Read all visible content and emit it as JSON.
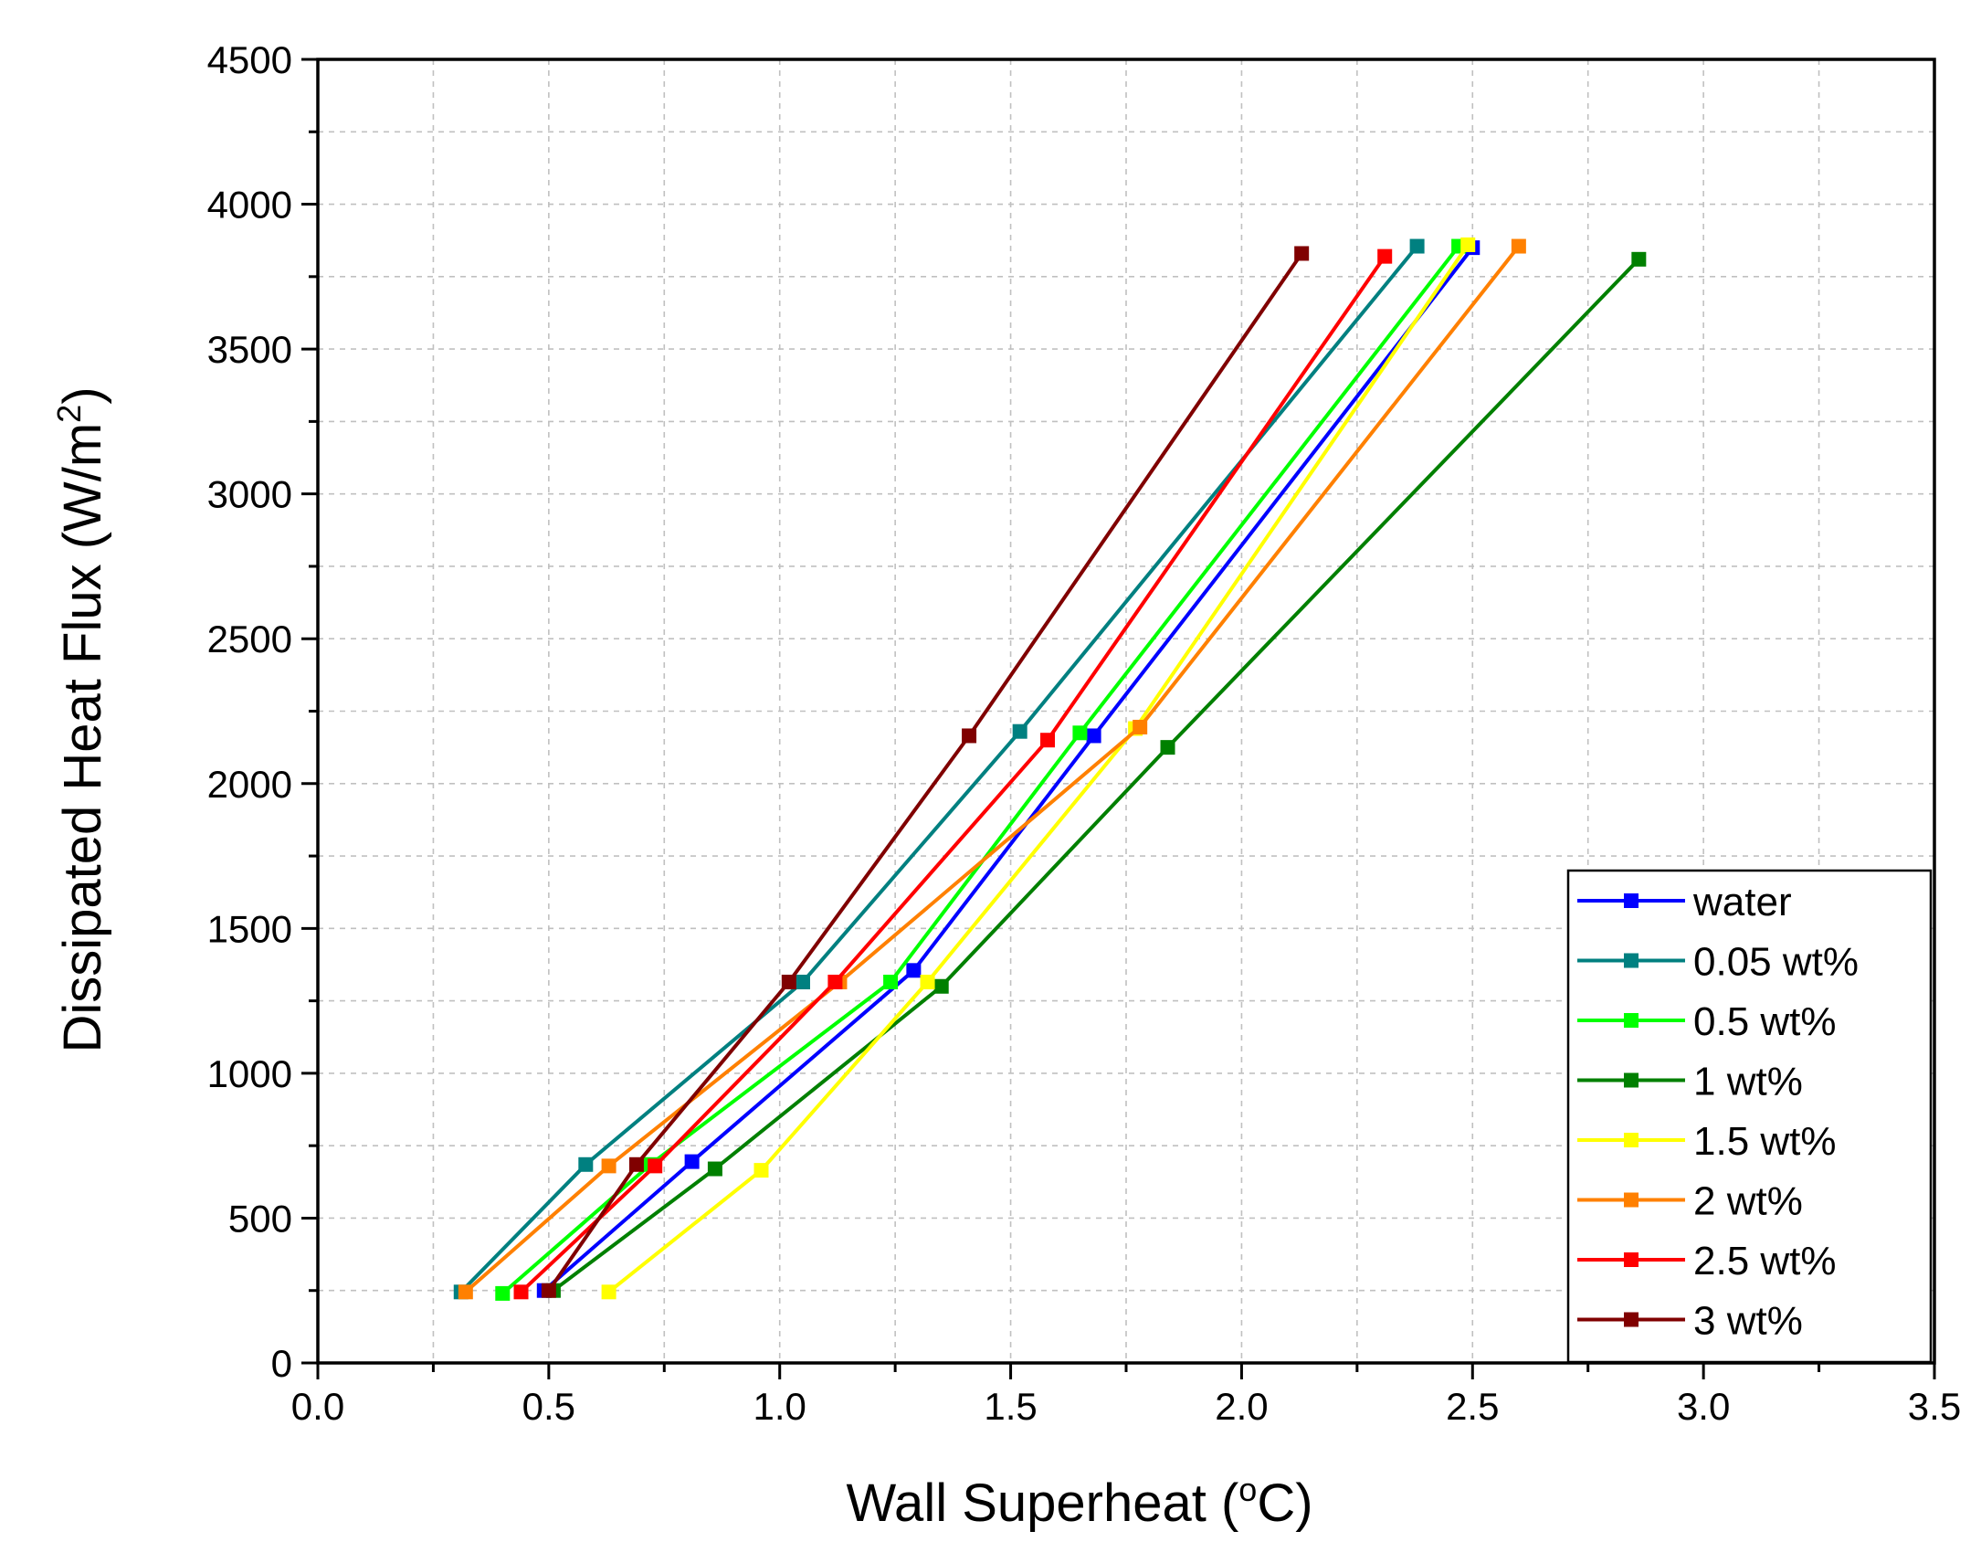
{
  "chart_data": {
    "type": "line",
    "xlabel": "Wall Superheat (",
    "xlabel_sup": "o",
    "xlabel_unit": "C)",
    "ylabel": "Dissipated Heat Flux (W/m",
    "ylabel_sup": "2",
    "ylabel_end": ")",
    "xlim": [
      0.0,
      3.5
    ],
    "ylim": [
      0,
      4500
    ],
    "x_ticks": [
      "0.0",
      "0.5",
      "1.0",
      "1.5",
      "2.0",
      "2.5",
      "3.0",
      "3.5"
    ],
    "y_ticks": [
      "0",
      "500",
      "1000",
      "1500",
      "2000",
      "2500",
      "3000",
      "3500",
      "4000",
      "4500"
    ],
    "grid": true,
    "legend_position": "bottom-right",
    "series": [
      {
        "name": "water",
        "color": "#0000ff",
        "x": [
          0.49,
          0.81,
          1.29,
          1.68,
          2.5
        ],
        "y": [
          250,
          695,
          1355,
          2165,
          3850
        ]
      },
      {
        "name": "0.05 wt%",
        "color": "#008080",
        "x": [
          0.31,
          0.58,
          1.05,
          1.52,
          2.38
        ],
        "y": [
          245,
          685,
          1315,
          2180,
          3855
        ]
      },
      {
        "name": "0.5 wt%",
        "color": "#00ff00",
        "x": [
          0.4,
          0.72,
          1.24,
          1.65,
          2.47
        ],
        "y": [
          240,
          685,
          1315,
          2175,
          3855
        ]
      },
      {
        "name": "1 wt%",
        "color": "#008000",
        "x": [
          0.51,
          0.86,
          1.35,
          1.84,
          2.86
        ],
        "y": [
          250,
          670,
          1300,
          2125,
          3810
        ]
      },
      {
        "name": "1.5 wt%",
        "color": "#ffff00",
        "x": [
          0.63,
          0.96,
          1.32,
          1.77,
          2.49
        ],
        "y": [
          245,
          665,
          1315,
          2190,
          3860
        ]
      },
      {
        "name": "2 wt%",
        "color": "#ff8000",
        "x": [
          0.32,
          0.63,
          1.13,
          1.78,
          2.6
        ],
        "y": [
          245,
          680,
          1315,
          2195,
          3855
        ]
      },
      {
        "name": "2.5 wt%",
        "color": "#ff0000",
        "x": [
          0.44,
          0.73,
          1.12,
          1.58,
          2.31
        ],
        "y": [
          245,
          680,
          1315,
          2150,
          3820
        ]
      },
      {
        "name": "3 wt%",
        "color": "#800000",
        "x": [
          0.5,
          0.69,
          1.02,
          1.41,
          2.13
        ],
        "y": [
          250,
          685,
          1315,
          2165,
          3830
        ]
      }
    ]
  }
}
